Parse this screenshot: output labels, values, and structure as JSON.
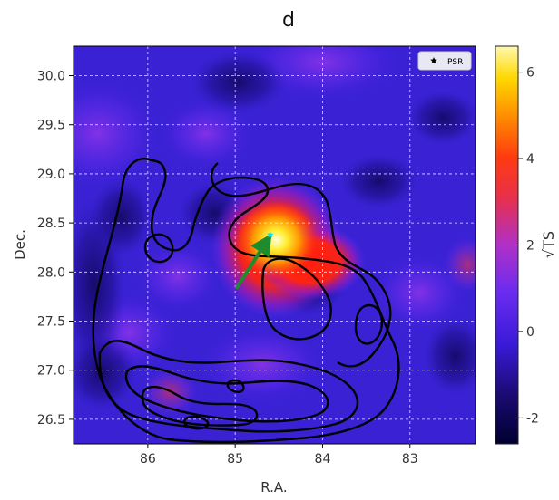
{
  "chart_data": {
    "type": "heatmap",
    "title": "d",
    "xlabel": "R.A.",
    "ylabel": "Dec.",
    "x_reversed": true,
    "xlim": [
      86.85,
      82.25
    ],
    "ylim": [
      26.25,
      30.3
    ],
    "x_ticks": [
      86,
      85,
      84,
      83
    ],
    "x_tick_labels": [
      "86",
      "85",
      "84",
      "83"
    ],
    "y_ticks": [
      26.5,
      27.0,
      27.5,
      28.0,
      28.5,
      29.0,
      29.5,
      30.0
    ],
    "y_tick_labels": [
      "26.5",
      "27.0",
      "27.5",
      "28.0",
      "28.5",
      "29.0",
      "29.5",
      "30.0"
    ],
    "grid": true,
    "grid_style": "dashed white",
    "colormap": "gnuplot2",
    "colorbar": {
      "label": "√TS",
      "range": [
        -2.6,
        6.6
      ],
      "ticks": [
        -2,
        0,
        2,
        4,
        6
      ],
      "tick_labels": [
        "-2",
        "0",
        "2",
        "4",
        "6"
      ]
    },
    "legend": {
      "position": "top-right",
      "entries": [
        {
          "marker": "star",
          "label": "PSR"
        }
      ]
    },
    "peak": {
      "ra": 84.55,
      "dec": 28.38,
      "value": 6.4
    },
    "psr_marker": {
      "ra": 84.6,
      "dec": 28.38
    },
    "arrow": {
      "from_ra": 84.99,
      "from_dec": 27.83,
      "to_ra": 84.65,
      "to_dec": 28.3,
      "color": "#1e8c2e"
    },
    "contour_color": "#000000"
  }
}
